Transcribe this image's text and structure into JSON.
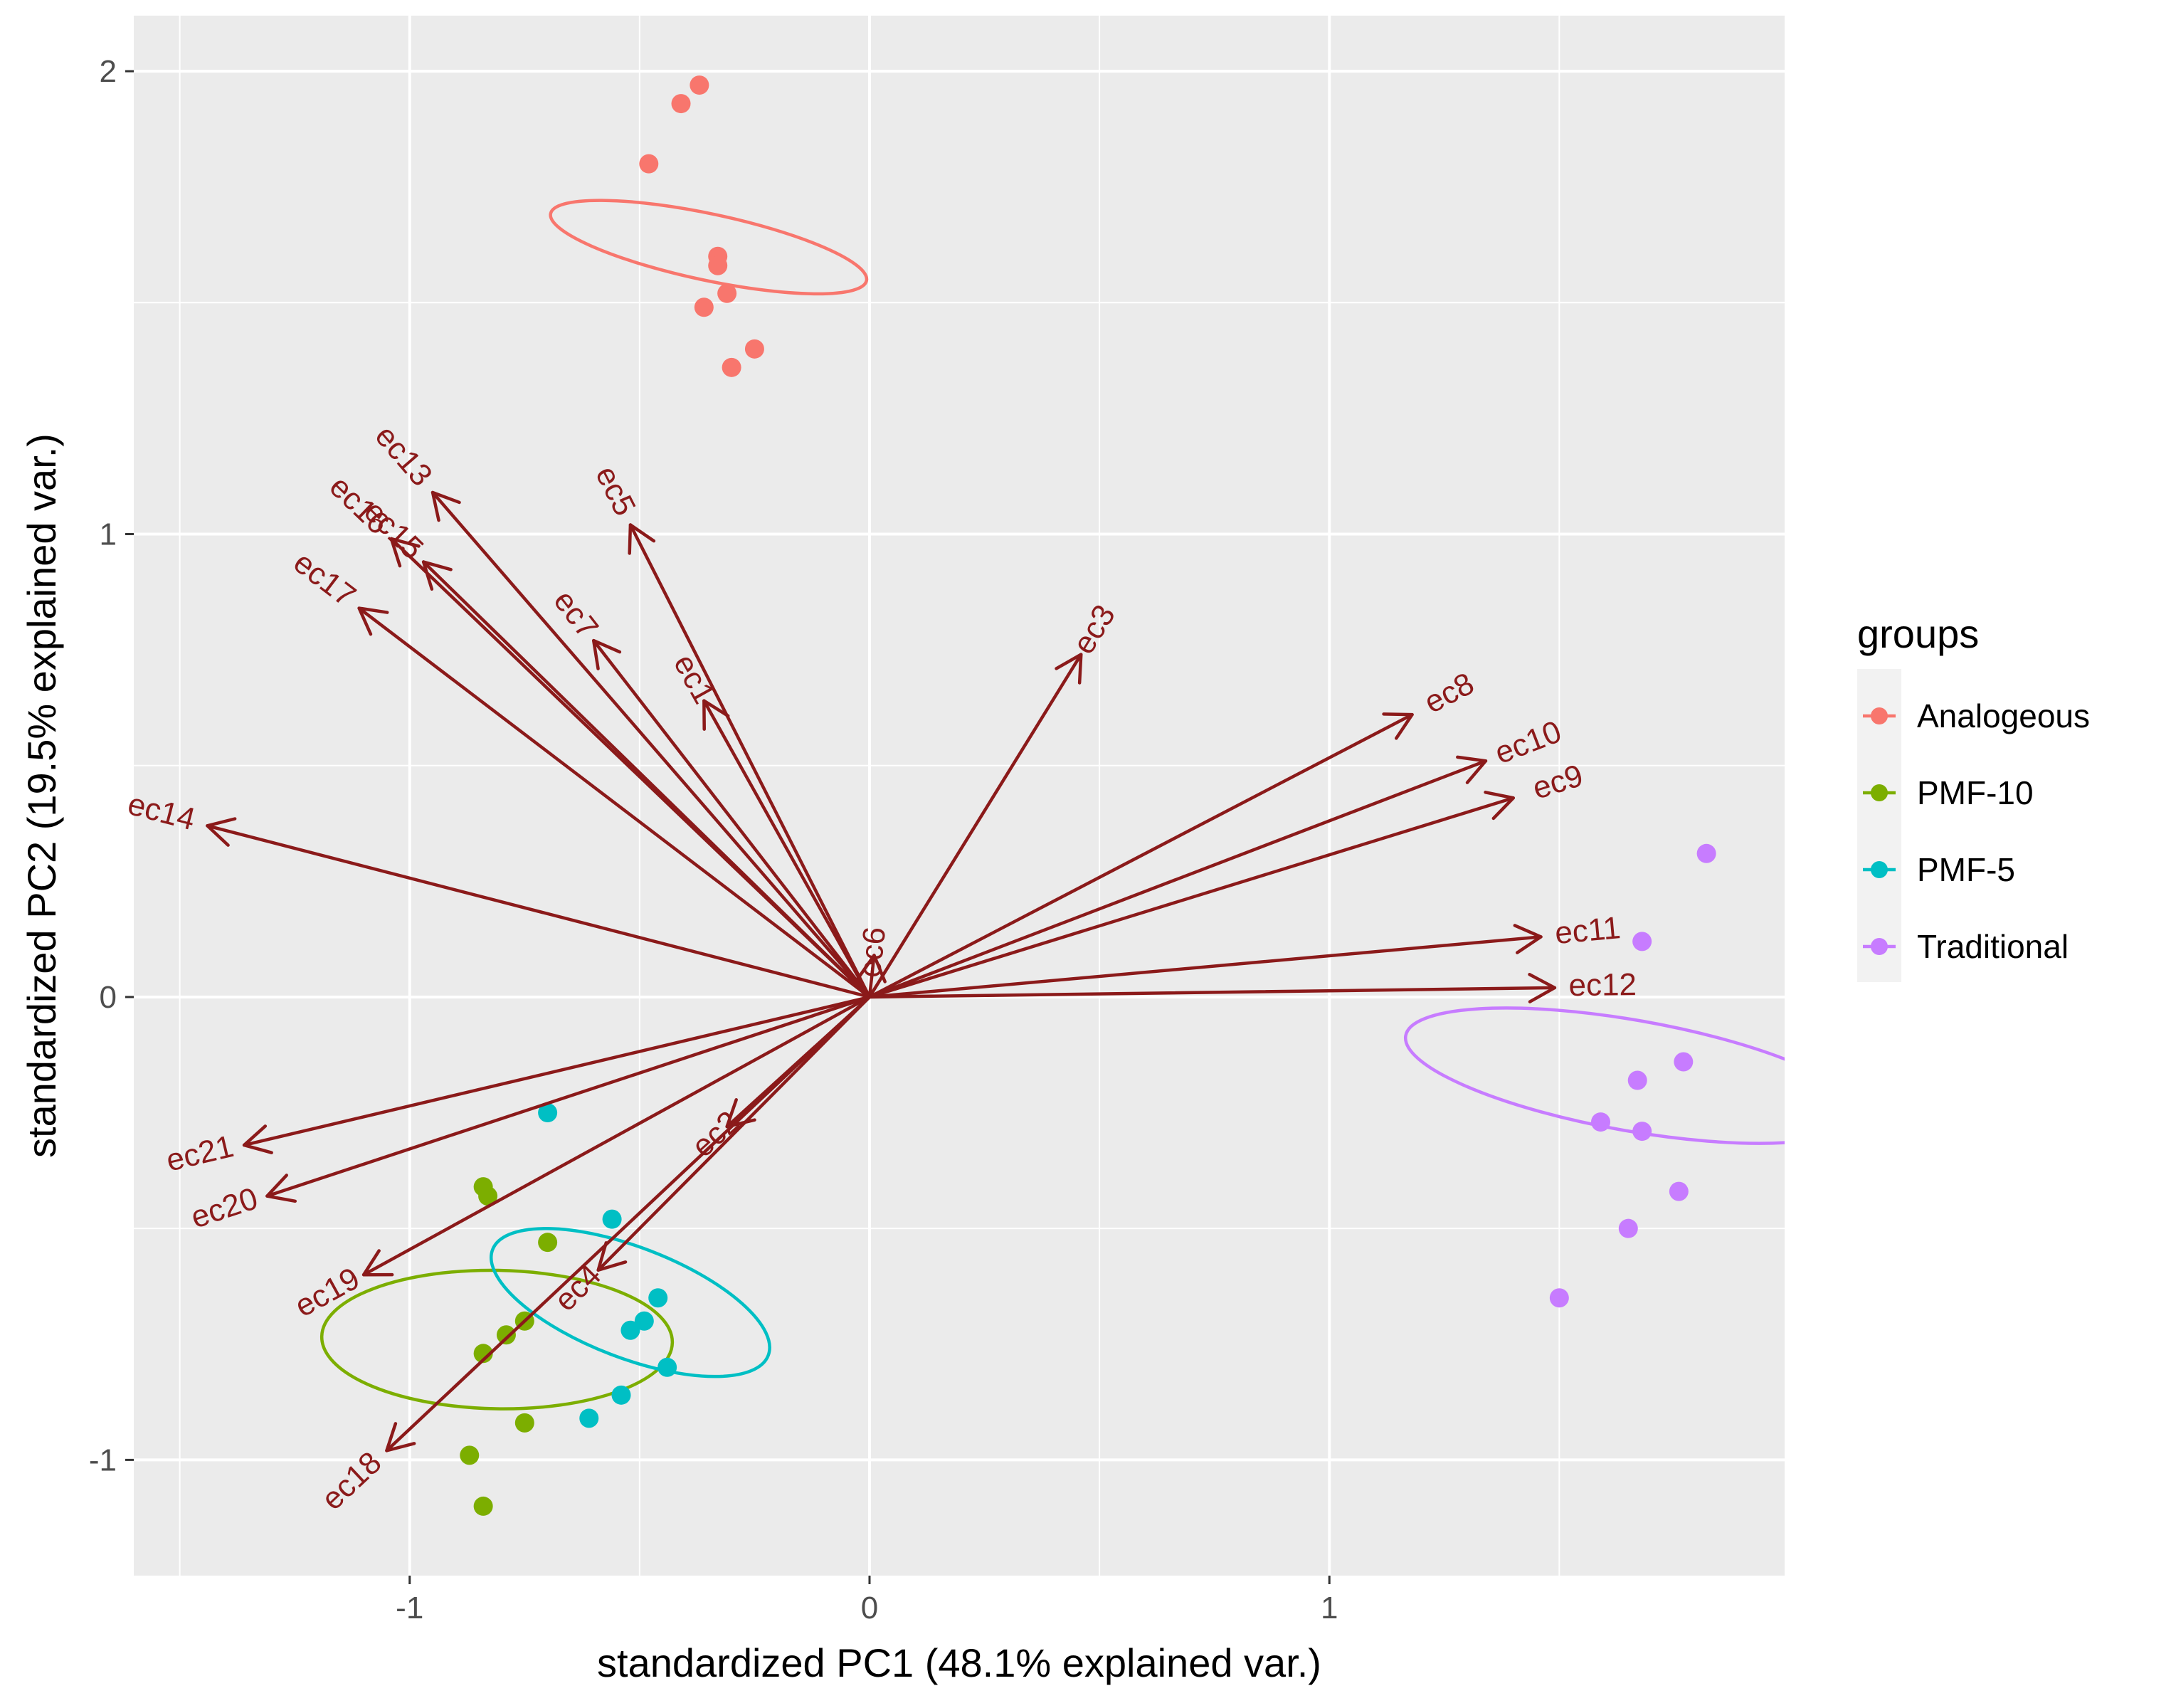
{
  "chart_data": {
    "type": "scatter",
    "xlabel": "standardized PC1 (48.1% explained var.)",
    "ylabel": "standardized PC2 (19.5% explained var.)",
    "xlim": [
      -1.6,
      1.99
    ],
    "ylim": [
      -1.25,
      2.12
    ],
    "x_ticks": [
      -1,
      0,
      1
    ],
    "y_ticks": [
      -1,
      0,
      1,
      2
    ],
    "grid": true,
    "legend": {
      "title": "groups",
      "placement": "right",
      "entries": [
        "Analogeous",
        "PMF-10",
        "PMF-5",
        "Traditional"
      ]
    },
    "colors": {
      "Analogeous": "#F8766D",
      "PMF-10": "#7CAE00",
      "PMF-5": "#00BFC4",
      "Traditional": "#C77CFF",
      "arrow": "#8B1A1A",
      "panel": "#EBEBEB",
      "grid": "#FFFFFF"
    },
    "series": [
      {
        "name": "Analogeous",
        "points": [
          [
            -0.37,
            1.97
          ],
          [
            -0.41,
            1.93
          ],
          [
            -0.48,
            1.8
          ],
          [
            -0.33,
            1.6
          ],
          [
            -0.33,
            1.58
          ],
          [
            -0.31,
            1.52
          ],
          [
            -0.36,
            1.49
          ],
          [
            -0.25,
            1.4
          ],
          [
            -0.3,
            1.36
          ]
        ],
        "ellipse": {
          "center": [
            -0.35,
            1.62
          ],
          "rx": 0.072,
          "ry": 0.35,
          "angle_deg": -78
        }
      },
      {
        "name": "PMF-10",
        "points": [
          [
            -0.84,
            -0.41
          ],
          [
            -0.83,
            -0.43
          ],
          [
            -0.7,
            -0.53
          ],
          [
            -0.75,
            -0.7
          ],
          [
            -0.79,
            -0.73
          ],
          [
            -0.84,
            -0.77
          ],
          [
            -0.75,
            -0.92
          ],
          [
            -0.87,
            -0.99
          ],
          [
            -0.84,
            -1.1
          ]
        ],
        "ellipse": {
          "center": [
            -0.81,
            -0.74
          ],
          "rx": 0.15,
          "ry": 0.38,
          "angle_deg": -89
        }
      },
      {
        "name": "PMF-5",
        "points": [
          [
            -0.7,
            -0.25
          ],
          [
            -0.56,
            -0.48
          ],
          [
            -0.46,
            -0.65
          ],
          [
            -0.49,
            -0.7
          ],
          [
            -0.52,
            -0.72
          ],
          [
            -0.44,
            -0.8
          ],
          [
            -0.54,
            -0.86
          ],
          [
            -0.61,
            -0.91
          ]
        ],
        "ellipse": {
          "center": [
            -0.52,
            -0.66
          ],
          "rx": 0.12,
          "ry": 0.32,
          "angle_deg": -69
        }
      },
      {
        "name": "Traditional",
        "points": [
          [
            1.82,
            0.31
          ],
          [
            1.68,
            0.12
          ],
          [
            1.77,
            -0.14
          ],
          [
            1.67,
            -0.18
          ],
          [
            1.59,
            -0.27
          ],
          [
            1.68,
            -0.29
          ],
          [
            1.76,
            -0.42
          ],
          [
            1.65,
            -0.5
          ],
          [
            1.5,
            -0.65
          ]
        ],
        "ellipse": {
          "center": [
            1.66,
            -0.17
          ],
          "rx": 0.12,
          "ry": 0.5,
          "angle_deg": -80
        }
      }
    ],
    "loadings": [
      {
        "label": "ec1",
        "x": -0.36,
        "y": 0.64
      },
      {
        "label": "ec2",
        "x": -0.31,
        "y": -0.28
      },
      {
        "label": "ec3",
        "x": 0.46,
        "y": 0.74
      },
      {
        "label": "ec4",
        "x": -0.59,
        "y": -0.59
      },
      {
        "label": "ec5",
        "x": -0.52,
        "y": 1.02
      },
      {
        "label": "ec6",
        "x": 0.01,
        "y": 0.09
      },
      {
        "label": "ec7",
        "x": -0.6,
        "y": 0.77
      },
      {
        "label": "ec8",
        "x": 1.18,
        "y": 0.61
      },
      {
        "label": "ec9",
        "x": 1.4,
        "y": 0.43
      },
      {
        "label": "ec10",
        "x": 1.34,
        "y": 0.51
      },
      {
        "label": "ec11",
        "x": 1.46,
        "y": 0.13
      },
      {
        "label": "ec12",
        "x": 1.49,
        "y": 0.02
      },
      {
        "label": "ec13",
        "x": -0.95,
        "y": 1.09
      },
      {
        "label": "ec14",
        "x": -1.44,
        "y": 0.37
      },
      {
        "label": "ec15",
        "x": -0.97,
        "y": 0.94
      },
      {
        "label": "ec16",
        "x": -1.04,
        "y": 0.99
      },
      {
        "label": "ec17",
        "x": -1.11,
        "y": 0.84
      },
      {
        "label": "ec18",
        "x": -1.05,
        "y": -0.98
      },
      {
        "label": "ec19",
        "x": -1.1,
        "y": -0.6
      },
      {
        "label": "ec20",
        "x": -1.31,
        "y": -0.43
      },
      {
        "label": "ec21",
        "x": -1.36,
        "y": -0.32
      }
    ]
  }
}
